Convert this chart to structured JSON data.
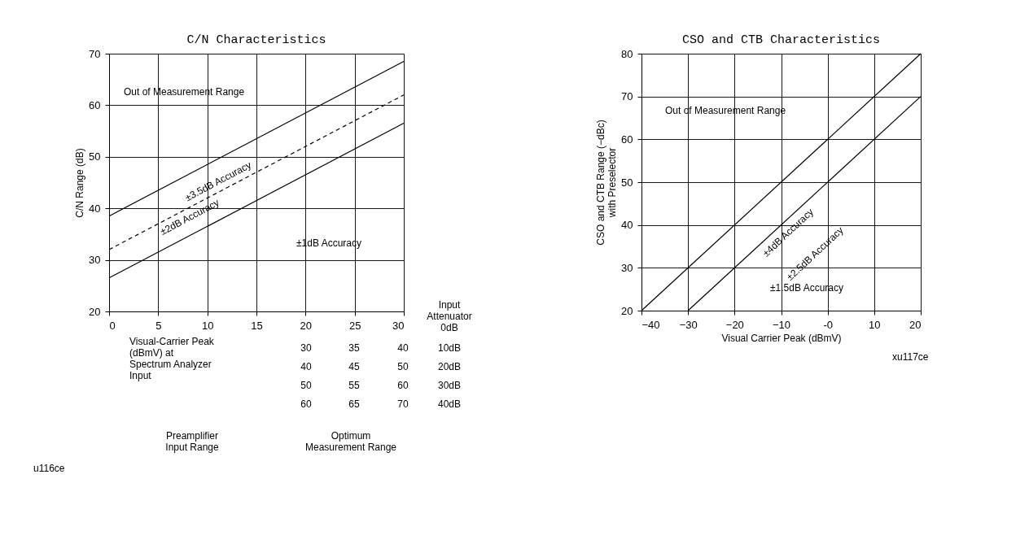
{
  "chart_data": [
    {
      "type": "line",
      "title": "C/N Characteristics",
      "xlabel": "Visual-Carrier Peak\n(dBmV) at\nSpectrum Analyzer\nInput",
      "ylabel": "C/N Range (dB)",
      "series": [
        {
          "color": "#000000",
          "x": [
            0,
            30
          ],
          "values": [
            38.5,
            68.5
          ],
          "line_style": "solid"
        },
        {
          "color": "#000000",
          "x": [
            0,
            30
          ],
          "values": [
            32,
            62
          ],
          "line_style": "dashed"
        },
        {
          "color": "#000000",
          "x": [
            0,
            30
          ],
          "values": [
            26.5,
            56.5
          ],
          "line_style": "solid"
        }
      ],
      "xlim": [
        0,
        30
      ],
      "xticks": [
        0,
        5,
        10,
        15,
        20,
        25,
        30
      ],
      "ylim": [
        20,
        70
      ],
      "yticks": [
        20,
        30,
        40,
        50,
        60,
        70
      ],
      "grid": true,
      "marker": "none",
      "annotations": [
        "Out of Measurement Range",
        "±3.5dB Accuracy",
        "±2dB Accuracy",
        "±1dB Accuracy",
        "Input\nAttenuator",
        "0dB",
        "30",
        "35",
        "40",
        "10dB",
        "40",
        "45",
        "50",
        "20dB",
        "50",
        "55",
        "60",
        "30dB",
        "60",
        "65",
        "70",
        "40dB",
        "Preamplifier\nInput Range",
        "Optimum\nMeasurement Range",
        "u116ce"
      ]
    },
    {
      "type": "line",
      "title": "CSO and CTB Characteristics",
      "xlabel": "Visual Carrier Peak (dBmV)",
      "ylabel": "CSO and CTB Range (−dBc)\nwith Preselector",
      "series": [
        {
          "color": "#000000",
          "x": [
            -40,
            20
          ],
          "values": [
            20,
            80
          ],
          "line_style": "solid"
        },
        {
          "color": "#000000",
          "x": [
            -30,
            20
          ],
          "values": [
            20,
            70
          ],
          "line_style": "solid"
        }
      ],
      "xlim": [
        -40,
        20
      ],
      "xticks": [
        -40,
        -30,
        -20,
        -10,
        {
          "value": 0,
          "label": "-0"
        },
        10,
        20
      ],
      "ylim": [
        20,
        80
      ],
      "yticks": [
        20,
        30,
        40,
        50,
        60,
        70,
        80
      ],
      "grid": true,
      "marker": "none",
      "annotations": [
        "Out of Measurement Range",
        "±4dB Accuracy",
        "±2.5dB Accuracy",
        "±1.5dB Accuracy",
        "xu117ce"
      ]
    }
  ]
}
